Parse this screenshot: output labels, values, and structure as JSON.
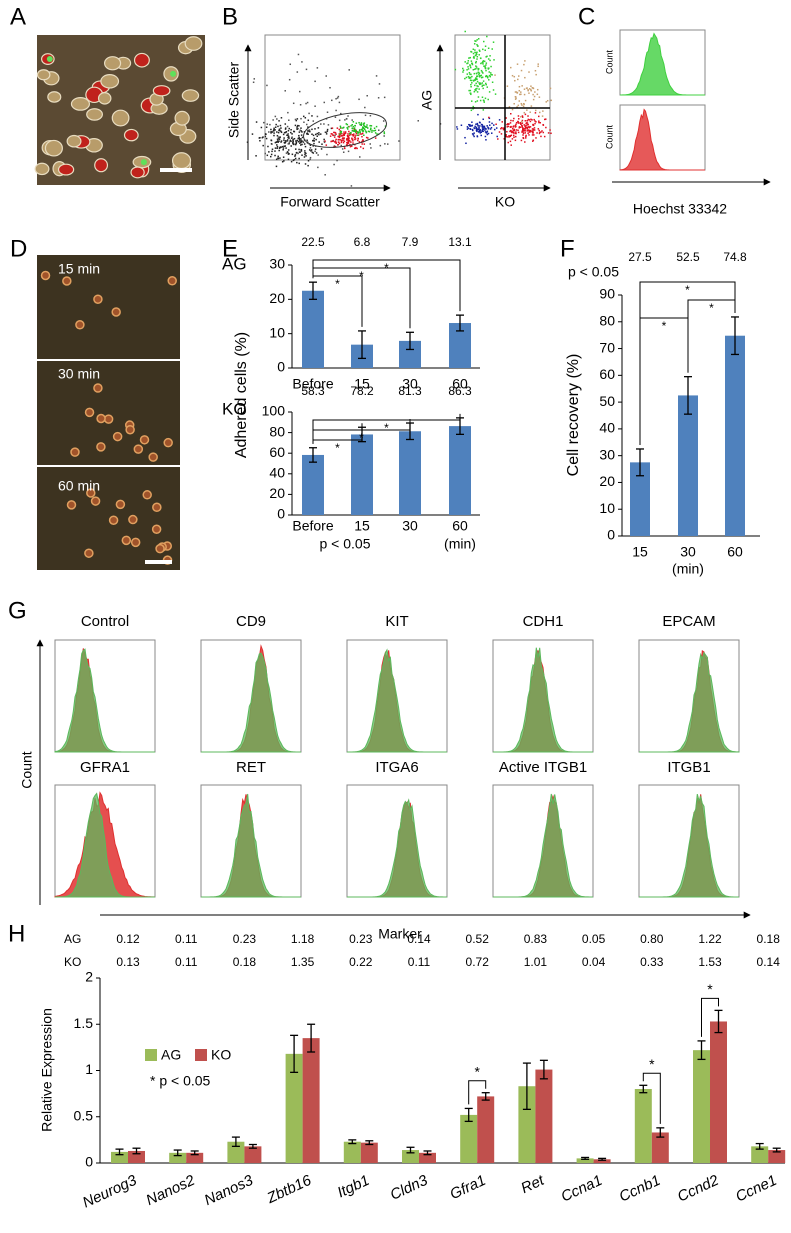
{
  "panel_labels": [
    "A",
    "B",
    "C",
    "D",
    "E",
    "F",
    "G",
    "H"
  ],
  "panel_b": {
    "scatter_y_label": "Side Scatter",
    "scatter_x_label": "Forward Scatter",
    "sort_y_label": "AG",
    "sort_x_label": "KO"
  },
  "panel_c": {
    "count_labels": [
      "Count",
      "Count"
    ],
    "x_label": "Hoechst 33342"
  },
  "panel_d": {
    "time_labels": [
      "15 min",
      "30 min",
      "60 min"
    ]
  },
  "panel_g": {
    "markers": [
      "Control",
      "CD9",
      "KIT",
      "CDH1",
      "EPCAM",
      "GFRA1",
      "RET",
      "ITGA6",
      "Active ITGB1",
      "ITGB1"
    ],
    "y_label": "Count",
    "x_label": "Marker"
  },
  "chart_data": [
    {
      "type": "bar",
      "title": "AG",
      "y_label": "Adhered cells (%)",
      "categories": [
        "Before",
        "15",
        "30",
        "60"
      ],
      "values": [
        22.5,
        6.8,
        7.9,
        13.1
      ],
      "errors": [
        2.5,
        4,
        2.5,
        2.3
      ],
      "color": "#4f81bd",
      "ylim": [
        0,
        30
      ],
      "yticks": [
        0,
        10,
        20,
        30
      ],
      "significance": [
        {
          "pair": [
            0,
            1
          ],
          "label": "*"
        },
        {
          "pair": [
            0,
            2
          ],
          "label": "*"
        },
        {
          "pair": [
            0,
            3
          ],
          "label": "*"
        }
      ]
    },
    {
      "type": "bar",
      "title": "KO",
      "categories": [
        "Before",
        "15",
        "30",
        "60"
      ],
      "values": [
        58.3,
        78.2,
        81.3,
        86.3
      ],
      "errors": [
        7,
        7,
        8,
        8
      ],
      "color": "#4f81bd",
      "ylim": [
        0,
        100
      ],
      "yticks": [
        0,
        20,
        40,
        60,
        80,
        100
      ],
      "note": "p < 0.05",
      "x_unit": "(min)",
      "significance": [
        {
          "pair": [
            0,
            1
          ],
          "label": "*"
        },
        {
          "pair": [
            0,
            2
          ],
          "label": "*"
        },
        {
          "pair": [
            0,
            3
          ],
          "label": "*"
        }
      ]
    },
    {
      "type": "bar",
      "y_label": "Cell recovery (%)",
      "note": "p < 0.05",
      "x_unit": "(min)",
      "categories": [
        "15",
        "30",
        "60"
      ],
      "values": [
        27.5,
        52.5,
        74.8
      ],
      "errors": [
        5,
        7,
        7
      ],
      "color": "#4f81bd",
      "ylim": [
        0,
        90
      ],
      "yticks": [
        0,
        10,
        20,
        30,
        40,
        50,
        60,
        70,
        80,
        90
      ],
      "significance": [
        {
          "pair": [
            0,
            1
          ],
          "label": "*"
        },
        {
          "pair": [
            1,
            2
          ],
          "label": "*"
        },
        {
          "pair": [
            0,
            2
          ],
          "label": "*"
        }
      ]
    },
    {
      "type": "grouped-bar",
      "y_label": "Relative Expression",
      "legend_note": "* p < 0.05",
      "categories": [
        "Neurog3",
        "Nanos2",
        "Nanos3",
        "Zbtb16",
        "Itgb1",
        "Cldn3",
        "Gfra1",
        "Ret",
        "Ccna1",
        "Ccnb1",
        "Ccnd2",
        "Ccne1"
      ],
      "series": [
        {
          "name": "AG",
          "color": "#9bbb59",
          "values": [
            0.12,
            0.11,
            0.23,
            1.18,
            0.23,
            0.14,
            0.52,
            0.83,
            0.05,
            0.8,
            1.22,
            0.18
          ],
          "value_labels": [
            "0.12",
            "0.11",
            "0.23",
            "1.18",
            "0.23",
            "0.14",
            "0.52",
            "0.83",
            "0.05",
            "0.80",
            "1.22",
            "0.18"
          ],
          "errors": [
            0.03,
            0.03,
            0.05,
            0.2,
            0.02,
            0.03,
            0.07,
            0.25,
            0.01,
            0.04,
            0.1,
            0.03
          ]
        },
        {
          "name": "KO",
          "color": "#c0504d",
          "values": [
            0.13,
            0.11,
            0.18,
            1.35,
            0.22,
            0.11,
            0.72,
            1.01,
            0.04,
            0.33,
            1.53,
            0.14
          ],
          "value_labels": [
            "0.13",
            "0.11",
            "0.18",
            "1.35",
            "0.22",
            "0.11",
            "0.72",
            "1.01",
            "0.04",
            "0.33",
            "1.53",
            "0.14"
          ],
          "errors": [
            0.03,
            0.02,
            0.02,
            0.15,
            0.02,
            0.02,
            0.04,
            0.1,
            0.01,
            0.05,
            0.12,
            0.02
          ]
        }
      ],
      "ylim": [
        0,
        2
      ],
      "yticks": [
        0,
        0.5,
        1,
        1.5,
        2
      ],
      "significance": [
        {
          "category": 6,
          "label": "*"
        },
        {
          "category": 9,
          "label": "*"
        },
        {
          "category": 10,
          "label": "*"
        }
      ]
    }
  ]
}
